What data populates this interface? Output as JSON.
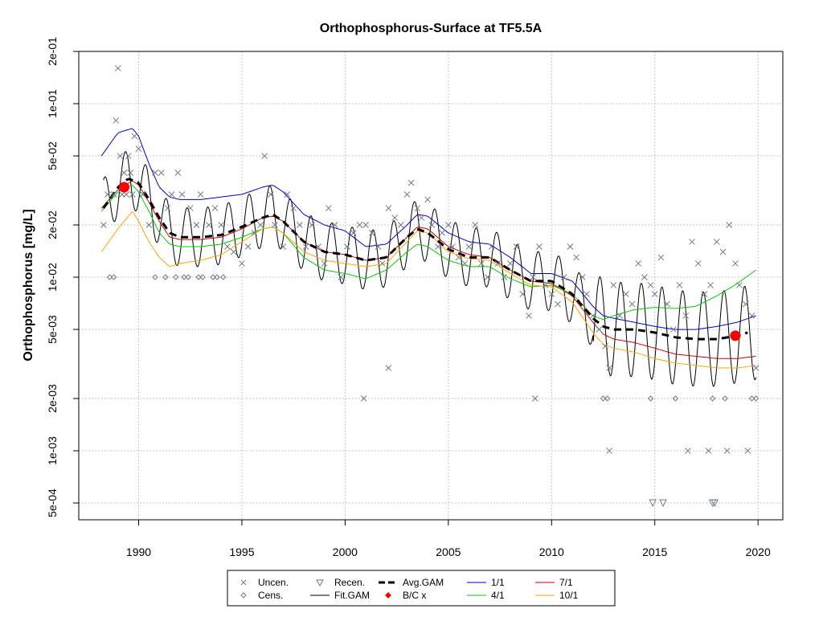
{
  "chart_data": {
    "type": "scatter",
    "title": "Orthophosphorus-Surface at TF5.5A",
    "xlabel": "",
    "ylabel": "Orthophosphorus [mg/L]",
    "y_scale": "log10",
    "xlim": [
      1987.1,
      2021.2
    ],
    "ylim": [
      0.0004,
      0.2
    ],
    "x_ticks": [
      1990,
      1995,
      2000,
      2005,
      2010,
      2015,
      2020
    ],
    "x_tick_labels": [
      "1990",
      "1995",
      "2000",
      "2005",
      "2010",
      "2015",
      "2020"
    ],
    "y_ticks": [
      0.0005,
      0.001,
      0.002,
      0.005,
      0.01,
      0.02,
      0.05,
      0.1,
      0.2
    ],
    "y_tick_labels": [
      "5e-04",
      "1e-03",
      "2e-03",
      "5e-03",
      "1e-02",
      "2e-02",
      "5e-02",
      "1e-01",
      "2e-01"
    ],
    "grid": true,
    "legend_position": "bottom",
    "legend": [
      {
        "key": "uncen",
        "label": "Uncen.",
        "symbol": "x",
        "color": "#6e7b8b"
      },
      {
        "key": "recen",
        "label": "Recen.",
        "symbol": "triangle-down",
        "color": "#6e7b8b"
      },
      {
        "key": "avg",
        "label": "Avg.GAM",
        "symbol": "dash-line",
        "color": "#000000"
      },
      {
        "key": "s1",
        "label": "1/1",
        "symbol": "line",
        "color": "#0000cd"
      },
      {
        "key": "s7",
        "label": "7/1",
        "symbol": "line",
        "color": "#cd0000"
      },
      {
        "key": "cens",
        "label": "Cens.",
        "symbol": "diamond",
        "color": "#6e7b8b"
      },
      {
        "key": "fit",
        "label": "Fit.GAM",
        "symbol": "line",
        "color": "#000000"
      },
      {
        "key": "bc",
        "label": "B/C x",
        "symbol": "red-diamond",
        "color": "#ff0000"
      },
      {
        "key": "s4",
        "label": "4/1",
        "symbol": "line",
        "color": "#00cd00"
      },
      {
        "key": "s10",
        "label": "10/1",
        "symbol": "line",
        "color": "#ffa500"
      }
    ],
    "series": [
      {
        "name": "Avg.GAM",
        "key": "avg",
        "color": "#000000",
        "style": "dashed",
        "x": [
          1988.3,
          1989.0,
          1989.5,
          1990.0,
          1990.5,
          1991.0,
          1991.5,
          1992.0,
          1993.0,
          1994.0,
          1995.0,
          1996.0,
          1996.5,
          1997.0,
          1998.0,
          1999.0,
          2000.0,
          2001.0,
          2002.0,
          2003.0,
          2003.5,
          2004.0,
          2005.0,
          2006.0,
          2007.0,
          2008.0,
          2009.0,
          2010.0,
          2011.0,
          2012.0,
          2012.5,
          2013.0,
          2014.0,
          2015.0,
          2016.0,
          2017.0,
          2018.0,
          2019.0,
          2019.5
        ],
        "y": [
          0.025,
          0.033,
          0.037,
          0.035,
          0.028,
          0.022,
          0.018,
          0.017,
          0.017,
          0.0175,
          0.0195,
          0.022,
          0.023,
          0.021,
          0.016,
          0.014,
          0.0135,
          0.0125,
          0.013,
          0.017,
          0.019,
          0.018,
          0.0145,
          0.013,
          0.013,
          0.011,
          0.0095,
          0.0095,
          0.008,
          0.0058,
          0.0052,
          0.005,
          0.005,
          0.0048,
          0.0045,
          0.0044,
          0.0044,
          0.0046,
          0.0048
        ]
      },
      {
        "name": "1/1",
        "key": "s1",
        "color": "#0000cd",
        "style": "solid",
        "x": [
          1988.2,
          1989.0,
          1989.7,
          1990.0,
          1990.5,
          1991.0,
          1991.5,
          1992.0,
          1993.0,
          1994.0,
          1995.0,
          1996.0,
          1996.5,
          1997.0,
          1998.0,
          1999.0,
          2000.0,
          2001.0,
          2002.0,
          2003.0,
          2003.5,
          2004.0,
          2005.0,
          2006.0,
          2007.0,
          2008.0,
          2009.0,
          2010.0,
          2011.0,
          2012.0,
          2012.5,
          2013.0,
          2014.0,
          2015.0,
          2016.0,
          2017.0,
          2018.0,
          2019.0,
          2019.9
        ],
        "y": [
          0.05,
          0.068,
          0.072,
          0.065,
          0.045,
          0.033,
          0.029,
          0.028,
          0.028,
          0.029,
          0.03,
          0.033,
          0.034,
          0.031,
          0.023,
          0.02,
          0.0185,
          0.015,
          0.0155,
          0.02,
          0.023,
          0.0225,
          0.018,
          0.016,
          0.0155,
          0.013,
          0.0105,
          0.0105,
          0.0095,
          0.0068,
          0.006,
          0.0058,
          0.0055,
          0.0052,
          0.005,
          0.005,
          0.0052,
          0.0055,
          0.006
        ]
      },
      {
        "name": "7/1",
        "key": "s7",
        "color": "#cd0000",
        "style": "solid",
        "x": [
          1988.2,
          1989.0,
          1989.7,
          1990.0,
          1990.5,
          1991.0,
          1991.5,
          1992.0,
          1993.0,
          1994.0,
          1995.0,
          1996.0,
          1996.5,
          1997.0,
          1998.0,
          1999.0,
          2000.0,
          2001.0,
          2002.0,
          2003.0,
          2003.5,
          2004.0,
          2005.0,
          2006.0,
          2007.0,
          2008.0,
          2009.0,
          2010.0,
          2011.0,
          2012.0,
          2012.5,
          2013.0,
          2014.0,
          2015.0,
          2016.0,
          2017.0,
          2018.0,
          2019.0,
          2019.9
        ],
        "y": [
          0.025,
          0.032,
          0.036,
          0.034,
          0.027,
          0.021,
          0.017,
          0.0165,
          0.0165,
          0.017,
          0.019,
          0.022,
          0.0225,
          0.021,
          0.016,
          0.014,
          0.0135,
          0.0125,
          0.013,
          0.017,
          0.0195,
          0.019,
          0.015,
          0.0135,
          0.013,
          0.011,
          0.0095,
          0.0092,
          0.0078,
          0.0055,
          0.0047,
          0.0044,
          0.0042,
          0.0039,
          0.0036,
          0.0035,
          0.0034,
          0.0034,
          0.0035
        ]
      },
      {
        "name": "4/1",
        "key": "s4",
        "color": "#00cd00",
        "style": "solid",
        "x": [
          1988.2,
          1989.0,
          1989.7,
          1990.0,
          1990.5,
          1991.0,
          1991.5,
          1992.0,
          1993.0,
          1994.0,
          1995.0,
          1996.0,
          1996.5,
          1997.0,
          1998.0,
          1999.0,
          2000.0,
          2001.0,
          2002.0,
          2003.0,
          2003.5,
          2004.0,
          2005.0,
          2006.0,
          2007.0,
          2008.0,
          2009.0,
          2010.0,
          2011.0,
          2012.0,
          2012.5,
          2013.0,
          2014.0,
          2015.0,
          2016.0,
          2017.0,
          2018.0,
          2019.0,
          2019.9
        ],
        "y": [
          0.024,
          0.031,
          0.034,
          0.031,
          0.024,
          0.018,
          0.0155,
          0.015,
          0.015,
          0.0155,
          0.017,
          0.019,
          0.0195,
          0.018,
          0.013,
          0.011,
          0.0105,
          0.0098,
          0.011,
          0.014,
          0.0155,
          0.015,
          0.0125,
          0.0115,
          0.0115,
          0.0098,
          0.0088,
          0.009,
          0.008,
          0.006,
          0.0057,
          0.006,
          0.0065,
          0.0067,
          0.0066,
          0.0068,
          0.0078,
          0.0092,
          0.011
        ]
      },
      {
        "name": "10/1",
        "key": "s10",
        "color": "#ffa500",
        "style": "solid",
        "x": [
          1988.2,
          1989.0,
          1989.7,
          1990.0,
          1990.5,
          1991.0,
          1991.5,
          1992.0,
          1993.0,
          1994.0,
          1995.0,
          1996.0,
          1996.5,
          1997.0,
          1998.0,
          1999.0,
          2000.0,
          2001.0,
          2002.0,
          2003.0,
          2003.5,
          2004.0,
          2005.0,
          2006.0,
          2007.0,
          2008.0,
          2009.0,
          2010.0,
          2011.0,
          2012.0,
          2012.5,
          2013.0,
          2014.0,
          2015.0,
          2016.0,
          2017.0,
          2018.0,
          2019.0,
          2019.9
        ],
        "y": [
          0.014,
          0.019,
          0.024,
          0.021,
          0.016,
          0.013,
          0.0115,
          0.012,
          0.0125,
          0.0135,
          0.016,
          0.019,
          0.0195,
          0.018,
          0.014,
          0.0125,
          0.012,
          0.0115,
          0.012,
          0.016,
          0.0185,
          0.018,
          0.014,
          0.0128,
          0.0125,
          0.0105,
          0.009,
          0.0088,
          0.0072,
          0.0048,
          0.0041,
          0.0039,
          0.0037,
          0.0034,
          0.0032,
          0.0031,
          0.003,
          0.003,
          0.0031
        ]
      }
    ],
    "fit_gam": {
      "name": "Fit.GAM",
      "key": "fit",
      "color": "#000000",
      "x_start": 1988.3,
      "x_end": 2019.9,
      "seasonal_amplitude_log10": 0.17
    },
    "uncensored": {
      "name": "Uncen.",
      "key": "uncen",
      "color": "#6e7b8b",
      "x": [
        1988.3,
        1988.5,
        1988.8,
        1988.9,
        1989.0,
        1989.1,
        1989.2,
        1989.3,
        1989.4,
        1989.5,
        1989.6,
        1989.7,
        1989.8,
        1990.0,
        1990.2,
        1990.5,
        1990.8,
        1991.1,
        1991.4,
        1991.6,
        1991.9,
        1992.1,
        1992.5,
        1992.8,
        1993.0,
        1993.4,
        1993.7,
        1994.0,
        1994.3,
        1994.6,
        1995.0,
        1995.3,
        1995.6,
        1995.9,
        1996.1,
        1996.4,
        1996.6,
        1997.0,
        1997.2,
        1997.5,
        1997.8,
        1998.1,
        1998.4,
        1998.7,
        1999.0,
        1999.2,
        1999.5,
        1999.8,
        2000.1,
        2000.4,
        2000.7,
        2001.0,
        2001.3,
        2001.6,
        2001.8,
        2002.1,
        2002.4,
        2002.7,
        2003.0,
        2003.2,
        2003.5,
        2003.7,
        2004.0,
        2004.2,
        2004.5,
        2004.7,
        2005.0,
        2005.2,
        2005.5,
        2005.8,
        2006.0,
        2006.3,
        2006.6,
        2006.9,
        2007.1,
        2007.4,
        2007.7,
        2008.0,
        2008.3,
        2008.6,
        2008.9,
        2009.1,
        2009.4,
        2009.7,
        2010.0,
        2010.3,
        2010.6,
        2010.9,
        2011.2,
        2011.5,
        2011.7,
        2012.0,
        2012.3,
        2012.6,
        2012.8,
        2013.0,
        2013.3,
        2013.6,
        2013.9,
        2014.2,
        2014.5,
        2014.8,
        2015.0,
        2015.3,
        2015.6,
        2015.9,
        2016.2,
        2016.5,
        2016.8,
        2017.1,
        2017.4,
        2017.7,
        2018.0,
        2018.3,
        2018.6,
        2018.9,
        2019.1,
        2019.4,
        2019.7,
        2019.9,
        2016.6,
        2017.6,
        2018.5,
        2019.5,
        2012.8,
        2000.9,
        2009.2,
        2002.1
      ],
      "y": [
        0.02,
        0.03,
        0.03,
        0.08,
        0.16,
        0.05,
        0.03,
        0.04,
        0.03,
        0.05,
        0.04,
        0.03,
        0.065,
        0.055,
        0.03,
        0.02,
        0.04,
        0.04,
        0.025,
        0.03,
        0.04,
        0.03,
        0.025,
        0.02,
        0.03,
        0.02,
        0.025,
        0.02,
        0.015,
        0.014,
        0.012,
        0.015,
        0.018,
        0.02,
        0.05,
        0.03,
        0.02,
        0.015,
        0.03,
        0.025,
        0.02,
        0.015,
        0.02,
        0.015,
        0.012,
        0.025,
        0.02,
        0.01,
        0.015,
        0.018,
        0.02,
        0.02,
        0.018,
        0.015,
        0.012,
        0.025,
        0.022,
        0.02,
        0.03,
        0.035,
        0.025,
        0.022,
        0.028,
        0.02,
        0.015,
        0.018,
        0.02,
        0.015,
        0.013,
        0.012,
        0.015,
        0.02,
        0.012,
        0.01,
        0.015,
        0.012,
        0.01,
        0.012,
        0.015,
        0.008,
        0.006,
        0.01,
        0.015,
        0.009,
        0.008,
        0.007,
        0.01,
        0.015,
        0.013,
        0.01,
        0.008,
        0.006,
        0.005,
        0.004,
        0.003,
        0.009,
        0.006,
        0.008,
        0.007,
        0.012,
        0.01,
        0.009,
        0.008,
        0.013,
        0.007,
        0.005,
        0.009,
        0.006,
        0.016,
        0.012,
        0.008,
        0.009,
        0.016,
        0.014,
        0.02,
        0.012,
        0.009,
        0.007,
        0.006,
        0.003,
        0.001,
        0.001,
        0.001,
        0.001,
        0.001,
        0.002,
        0.002,
        0.003
      ]
    },
    "censored": {
      "name": "Cens.",
      "key": "cens",
      "color": "#6e7b8b",
      "x": [
        1988.6,
        1988.8,
        1990.8,
        1991.3,
        1991.8,
        1992.2,
        1992.4,
        1992.9,
        1993.1,
        1993.6,
        1993.8,
        1994.1,
        2012.5,
        2012.7,
        2014.8,
        2016.0,
        2017.8,
        2018.4,
        2019.7,
        2019.9
      ],
      "y": [
        0.01,
        0.01,
        0.01,
        0.01,
        0.01,
        0.01,
        0.01,
        0.01,
        0.01,
        0.01,
        0.01,
        0.01,
        0.002,
        0.002,
        0.002,
        0.002,
        0.002,
        0.002,
        0.002,
        0.002
      ]
    },
    "recensored": {
      "name": "Recen.",
      "key": "recen",
      "color": "#6e7b8b",
      "x": [
        2014.9,
        2015.4,
        2017.8,
        2017.9
      ],
      "y": [
        0.0005,
        0.0005,
        0.0005,
        0.0005
      ]
    },
    "bc_points": {
      "name": "B/C x",
      "key": "bc",
      "color": "#ff0000",
      "x": [
        1989.3,
        2018.9
      ],
      "y": [
        0.033,
        0.0046
      ]
    }
  }
}
